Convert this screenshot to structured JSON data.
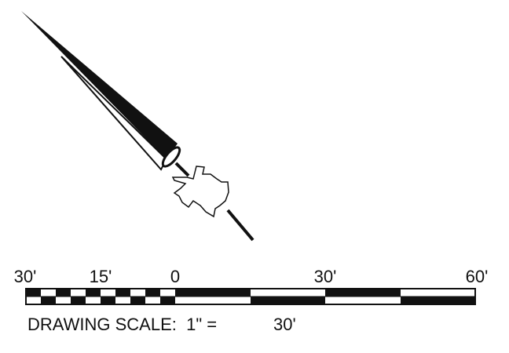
{
  "scale_bar": {
    "labels": [
      "30'",
      "15'",
      "0",
      "30'",
      "60'"
    ]
  },
  "caption": {
    "prefix": "DRAWING SCALE:  1\" =",
    "value": "30'"
  }
}
